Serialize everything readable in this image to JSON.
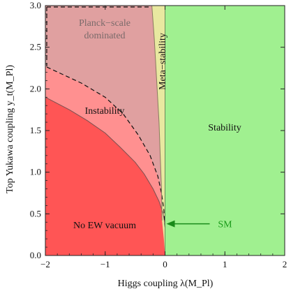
{
  "chart_data": {
    "type": "area",
    "xlabel": "Higgs coupling λ(M_Pl)",
    "ylabel": "Top Yukawa coupling y_t(M_Pl)",
    "xlim": [
      -2,
      2
    ],
    "ylim": [
      0,
      3
    ],
    "x_ticks": [
      "−2",
      "−1",
      "0",
      "1",
      "2"
    ],
    "y_ticks": [
      "0.0",
      "0.5",
      "1.0",
      "1.5",
      "2.0",
      "2.5",
      "3.0"
    ],
    "regions": [
      {
        "name": "Planck−scale dominated",
        "color": "#e8a8a8",
        "boundary": [
          [
            -2,
            3
          ],
          [
            -0.3,
            3
          ],
          [
            -0.1,
            2.5
          ],
          [
            -0.05,
            2.0
          ],
          [
            -0.03,
            1.0
          ],
          [
            0,
            0.4
          ],
          [
            -0.02,
            1.5
          ],
          [
            -2,
            2.2
          ]
        ]
      },
      {
        "name": "Instability",
        "color": "#ff9090"
      },
      {
        "name": "No EW vacuum",
        "color": "#ff5a5a",
        "boundary": [
          [
            -2,
            0
          ],
          [
            0,
            0
          ],
          [
            0,
            0.4
          ],
          [
            -0.2,
            0.8
          ],
          [
            -0.5,
            1.1
          ],
          [
            -1,
            1.5
          ],
          [
            -1.5,
            1.7
          ],
          [
            -2,
            1.9
          ]
        ]
      },
      {
        "name": "Meta−stability",
        "color": "#e8e8a0",
        "boundary": [
          [
            -0.2,
            3
          ],
          [
            0,
            3
          ],
          [
            0,
            0
          ],
          [
            -0.05,
            0.5
          ],
          [
            -0.1,
            1.5
          ],
          [
            -0.2,
            2.5
          ]
        ]
      },
      {
        "name": "Stability",
        "color": "#a0f090",
        "boundary": [
          [
            0,
            0
          ],
          [
            2,
            0
          ],
          [
            2,
            3
          ],
          [
            0,
            3
          ]
        ]
      }
    ],
    "dashed_curve": [
      [
        -2,
        2.2
      ],
      [
        -1.5,
        2.0
      ],
      [
        -1,
        1.7
      ],
      [
        -0.5,
        1.3
      ],
      [
        -0.2,
        0.9
      ],
      [
        -0.05,
        0.5
      ],
      [
        0,
        0.35
      ]
    ],
    "sm_point": {
      "label": "SM",
      "x": 0,
      "y": 0.38
    }
  },
  "colors": {
    "stability": "#a0f090",
    "metastability": "#e8e8a0",
    "planck": "#e0a0a0",
    "instability": "#ff9090",
    "no_ew": "#ff5555",
    "sm_arrow": "#1a8a1a"
  }
}
